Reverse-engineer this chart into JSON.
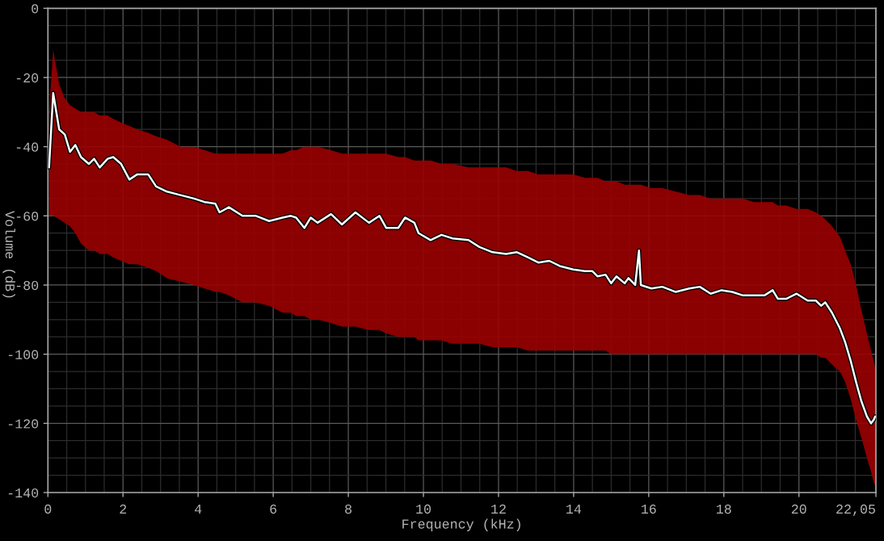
{
  "chart_data": {
    "type": "line",
    "xlabel": "Frequency (kHz)",
    "ylabel": "Volume (dB)",
    "grid": true,
    "xlim": [
      0,
      22.05
    ],
    "ylim": [
      -140,
      0
    ],
    "xticks": [
      0,
      2,
      4,
      6,
      8,
      10,
      12,
      14,
      16,
      18,
      20,
      {
        "value": 22.05,
        "label": "22,05"
      },
      {
        "value": 0.5,
        "label": null
      },
      {
        "value": 1,
        "label": null
      },
      {
        "value": 1.5,
        "label": null
      },
      {
        "value": 2.5,
        "label": null
      },
      {
        "value": 3,
        "label": null
      },
      {
        "value": 3.5,
        "label": null
      },
      {
        "value": 4.5,
        "label": null
      },
      {
        "value": 5,
        "label": null
      },
      {
        "value": 5.5,
        "label": null
      },
      {
        "value": 6.5,
        "label": null
      },
      {
        "value": 7,
        "label": null
      },
      {
        "value": 7.5,
        "label": null
      },
      {
        "value": 8.5,
        "label": null
      },
      {
        "value": 9,
        "label": null
      },
      {
        "value": 9.5,
        "label": null
      },
      {
        "value": 10.5,
        "label": null
      },
      {
        "value": 11,
        "label": null
      },
      {
        "value": 11.5,
        "label": null
      },
      {
        "value": 12.5,
        "label": null
      },
      {
        "value": 13,
        "label": null
      },
      {
        "value": 13.5,
        "label": null
      },
      {
        "value": 14.5,
        "label": null
      },
      {
        "value": 15,
        "label": null
      },
      {
        "value": 15.5,
        "label": null
      },
      {
        "value": 16.5,
        "label": null
      },
      {
        "value": 17,
        "label": null
      },
      {
        "value": 17.5,
        "label": null
      },
      {
        "value": 18.5,
        "label": null
      },
      {
        "value": 19,
        "label": null
      },
      {
        "value": 19.5,
        "label": null
      },
      {
        "value": 20.5,
        "label": null
      },
      {
        "value": 21,
        "label": null
      },
      {
        "value": 21.5,
        "label": null
      }
    ],
    "yticks": [
      0,
      -20,
      -40,
      -60,
      -80,
      -100,
      -120,
      -140,
      {
        "value": -5,
        "label": null
      },
      {
        "value": -10,
        "label": null
      },
      {
        "value": -15,
        "label": null
      },
      {
        "value": -25,
        "label": null
      },
      {
        "value": -30,
        "label": null
      },
      {
        "value": -35,
        "label": null
      },
      {
        "value": -45,
        "label": null
      },
      {
        "value": -50,
        "label": null
      },
      {
        "value": -55,
        "label": null
      },
      {
        "value": -65,
        "label": null
      },
      {
        "value": -70,
        "label": null
      },
      {
        "value": -75,
        "label": null
      },
      {
        "value": -85,
        "label": null
      },
      {
        "value": -90,
        "label": null
      },
      {
        "value": -95,
        "label": null
      },
      {
        "value": -105,
        "label": null
      },
      {
        "value": -110,
        "label": null
      },
      {
        "value": -115,
        "label": null
      },
      {
        "value": -125,
        "label": null
      },
      {
        "value": -130,
        "label": null
      },
      {
        "value": -135,
        "label": null
      }
    ],
    "x": [
      0.03,
      0.14,
      0.3,
      0.45,
      0.59,
      0.73,
      0.88,
      1.09,
      1.23,
      1.38,
      1.59,
      1.74,
      1.95,
      2.17,
      2.38,
      2.67,
      2.88,
      3.17,
      3.53,
      3.89,
      4.17,
      4.46,
      4.57,
      4.82,
      5.18,
      5.54,
      5.89,
      6.25,
      6.47,
      6.61,
      6.83,
      7.0,
      7.18,
      7.54,
      7.83,
      8.19,
      8.55,
      8.83,
      9.01,
      9.33,
      9.51,
      9.76,
      9.87,
      10.19,
      10.48,
      10.77,
      11.2,
      11.49,
      11.84,
      12.2,
      12.49,
      12.78,
      13.06,
      13.35,
      13.63,
      13.99,
      14.3,
      14.5,
      14.64,
      14.85,
      15.0,
      15.14,
      15.36,
      15.46,
      15.64,
      15.74,
      15.79,
      16.07,
      16.36,
      16.72,
      17.08,
      17.36,
      17.65,
      17.94,
      18.22,
      18.51,
      18.8,
      19.08,
      19.3,
      19.44,
      19.66,
      19.94,
      20.23,
      20.45,
      20.59,
      20.7,
      20.88,
      21.09,
      21.23,
      21.38,
      21.52,
      21.66,
      21.81,
      21.92,
      21.99,
      22.03
    ],
    "series": [
      {
        "color": "#ffffff",
        "values": [
          -46,
          -24.5,
          -35,
          -36.5,
          -41.5,
          -39.5,
          -43,
          -45,
          -43.5,
          -46,
          -43.5,
          -43,
          -45,
          -49.5,
          -48,
          -48,
          -51.5,
          -53,
          -54,
          -55,
          -56,
          -56.5,
          -59,
          -57.5,
          -60,
          -60,
          -61.5,
          -60.5,
          -60,
          -60.5,
          -63.5,
          -60.5,
          -62,
          -59.5,
          -62.5,
          -59,
          -62,
          -60,
          -63.5,
          -63.5,
          -60.5,
          -62,
          -65,
          -67,
          -65.5,
          -66.5,
          -67,
          -69,
          -70.5,
          -71,
          -70.5,
          -72,
          -73.5,
          -73,
          -74.5,
          -75.5,
          -76,
          -76,
          -77.5,
          -77,
          -79.5,
          -77.5,
          -79.5,
          -78,
          -80,
          -70,
          -80,
          -81,
          -80.5,
          -82,
          -81,
          -80.5,
          -82.5,
          -81.5,
          -82,
          -83,
          -83,
          -83,
          -81.5,
          -84,
          -84,
          -82.5,
          -84.5,
          -84.5,
          -86,
          -85,
          -88,
          -92.5,
          -96.5,
          -102,
          -108,
          -113.5,
          -118,
          -120,
          -119,
          -118
        ],
        "upper": [
          -30,
          -12,
          -22,
          -26,
          -28,
          -29,
          -30,
          -30,
          -30,
          -31,
          -31,
          -32,
          -33,
          -34,
          -35,
          -36,
          -37,
          -38,
          -40,
          -40,
          -41,
          -42,
          -42,
          -42,
          -42,
          -42,
          -42,
          -42,
          -41,
          -41,
          -40,
          -40,
          -40,
          -41,
          -42,
          -42,
          -42,
          -42,
          -42,
          -43,
          -43,
          -44,
          -44,
          -44,
          -45,
          -45,
          -46,
          -46,
          -46,
          -46,
          -47,
          -47,
          -48,
          -48,
          -48,
          -48,
          -49,
          -49,
          -49,
          -50,
          -50,
          -50,
          -51,
          -51,
          -51,
          -51,
          -51,
          -52,
          -52,
          -53,
          -54,
          -54,
          -55,
          -55,
          -55,
          -55,
          -56,
          -56,
          -56,
          -57,
          -57,
          -58,
          -58,
          -59,
          -60,
          -61,
          -63,
          -66,
          -70,
          -74,
          -80,
          -87,
          -94,
          -99,
          -102,
          -104
        ],
        "lower": [
          -60,
          -60,
          -61,
          -62,
          -63,
          -65,
          -68,
          -70,
          -70,
          -71,
          -71,
          -72,
          -73,
          -74,
          -74,
          -75,
          -76,
          -78,
          -79,
          -80,
          -81,
          -82,
          -82,
          -83,
          -85,
          -85,
          -86,
          -88,
          -88,
          -89,
          -89,
          -90,
          -90,
          -91,
          -92,
          -92,
          -93,
          -93,
          -94,
          -95,
          -95,
          -95,
          -96,
          -96,
          -96,
          -97,
          -97,
          -97,
          -98,
          -98,
          -98,
          -99,
          -99,
          -99,
          -99,
          -99,
          -99,
          -99,
          -99,
          -99,
          -100,
          -100,
          -100,
          -100,
          -100,
          -100,
          -100,
          -100,
          -100,
          -100,
          -100,
          -100,
          -100,
          -100,
          -100,
          -100,
          -100,
          -100,
          -100,
          -100,
          -100,
          -100,
          -100,
          -100,
          -101,
          -101,
          -103,
          -105,
          -108,
          -113,
          -119,
          -124,
          -130,
          -134,
          -137,
          -138
        ]
      }
    ]
  }
}
